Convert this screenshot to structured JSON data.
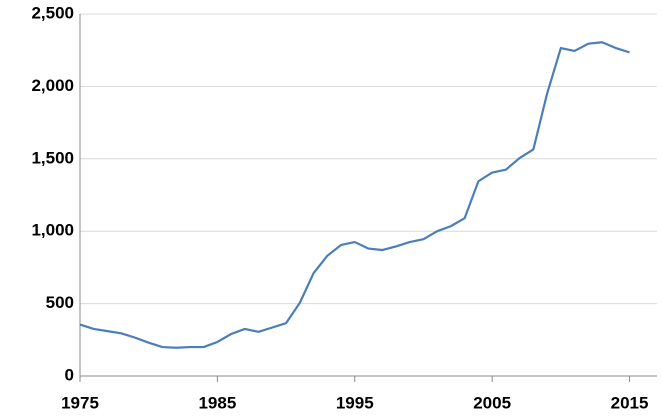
{
  "chart_data": {
    "type": "line",
    "x": [
      1975,
      1976,
      1977,
      1978,
      1979,
      1980,
      1981,
      1982,
      1983,
      1984,
      1985,
      1986,
      1987,
      1988,
      1989,
      1990,
      1991,
      1992,
      1993,
      1994,
      1995,
      1996,
      1997,
      1998,
      1999,
      2000,
      2001,
      2002,
      2003,
      2004,
      2005,
      2006,
      2007,
      2008,
      2009,
      2010,
      2011,
      2012,
      2013,
      2014,
      2015
    ],
    "values": [
      355,
      325,
      310,
      295,
      265,
      230,
      200,
      195,
      200,
      200,
      235,
      290,
      325,
      305,
      335,
      365,
      505,
      710,
      830,
      905,
      925,
      880,
      870,
      895,
      925,
      945,
      1000,
      1035,
      1090,
      1345,
      1405,
      1425,
      1505,
      1565,
      1950,
      2265,
      2245,
      2295,
      2305,
      2265,
      2235
    ],
    "color": "#4a7ebb",
    "xlim": [
      1975,
      2017
    ],
    "xticks": [
      1975,
      1985,
      1995,
      2005,
      2015
    ],
    "ylim": [
      0,
      2500
    ],
    "yticks": [
      0,
      500,
      {
        "value": 1000,
        "label": "1,000"
      },
      {
        "value": 1500,
        "label": "1,500"
      },
      {
        "value": 2000,
        "label": "2,000"
      },
      {
        "value": 2500,
        "label": "2,500"
      }
    ],
    "grid": true
  }
}
